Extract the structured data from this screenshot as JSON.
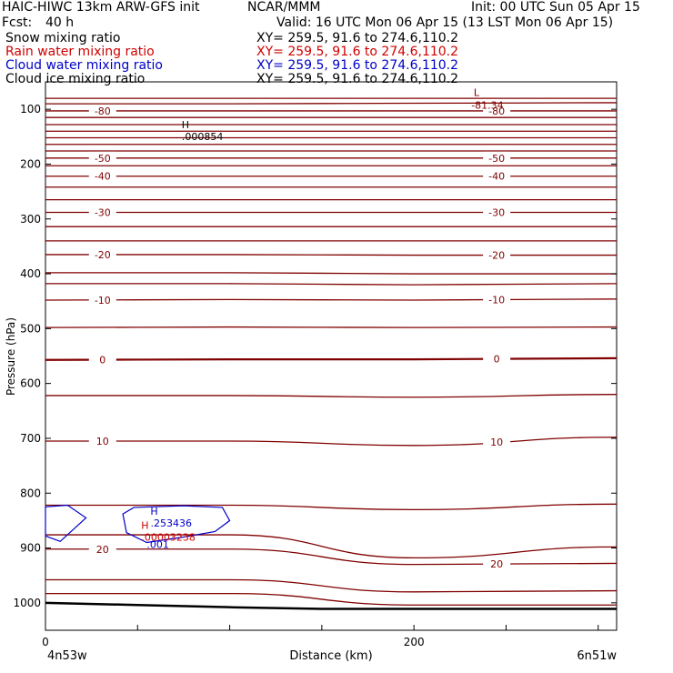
{
  "header": {
    "model": "HAIC-HIWC 13km ARW-GFS init",
    "center": "NCAR/MMM",
    "init": "Init: 00 UTC Sun 05 Apr 15",
    "fcst_label": "Fcst:",
    "fcst_value": "40 h",
    "valid": "Valid: 16 UTC Mon 06 Apr 15 (13 LST Mon 06 Apr 15)",
    "fields": [
      {
        "name": "Snow mixing ratio",
        "xy": "XY= 259.5, 91.6 to 274.6,110.2",
        "color": "#000000"
      },
      {
        "name": "Rain water mixing ratio",
        "xy": "XY= 259.5, 91.6 to 274.6,110.2",
        "color": "#d00000"
      },
      {
        "name": "Cloud water mixing ratio",
        "xy": "XY= 259.5, 91.6 to 274.6,110.2",
        "color": "#0000c8"
      },
      {
        "name": "Cloud ice mixing ratio",
        "xy": "XY= 259.5, 91.6 to 274.6,110.2",
        "color": "#000000"
      }
    ]
  },
  "chart_data": {
    "type": "line",
    "xlabel": "Distance (km)",
    "ylabel": "Pressure (hPa)",
    "xlim": [
      0,
      310
    ],
    "ylim": [
      1050,
      50
    ],
    "x_ticks": [
      0,
      200
    ],
    "y_ticks": [
      100,
      200,
      300,
      400,
      500,
      600,
      700,
      800,
      900,
      1000
    ],
    "endpoint_labels": {
      "left": "4n53w",
      "right": "6n51w"
    },
    "colors": {
      "temperature": "#800000",
      "terrain": "#000000",
      "cloud_water": "#0000c8",
      "rain": "#d00000"
    },
    "temperature_contours": [
      {
        "p": [
          80,
          80,
          80,
          80
        ],
        "label": null
      },
      {
        "p": [
          90,
          90,
          89,
          88
        ],
        "label": null
      },
      {
        "p": [
          103,
          103,
          103,
          103
        ],
        "label": "-80"
      },
      {
        "p": [
          115,
          115,
          115,
          115
        ],
        "label": null
      },
      {
        "p": [
          128,
          128,
          128,
          128
        ],
        "label": null
      },
      {
        "p": [
          140,
          140,
          140,
          140
        ],
        "label": null
      },
      {
        "p": [
          152,
          152,
          152,
          152
        ],
        "label": null
      },
      {
        "p": [
          164,
          164,
          164,
          164
        ],
        "label": null
      },
      {
        "p": [
          176,
          176,
          176,
          176
        ],
        "label": null
      },
      {
        "p": [
          189,
          189,
          189,
          189
        ],
        "label": "-50"
      },
      {
        "p": [
          203,
          203,
          203,
          203
        ],
        "label": null
      },
      {
        "p": [
          222,
          222,
          222,
          222
        ],
        "label": "-40"
      },
      {
        "p": [
          242,
          242,
          242,
          242
        ],
        "label": null
      },
      {
        "p": [
          265,
          265,
          265,
          265
        ],
        "label": null
      },
      {
        "p": [
          288,
          288,
          288,
          288
        ],
        "label": "-30"
      },
      {
        "p": [
          314,
          314,
          314,
          314
        ],
        "label": null
      },
      {
        "p": [
          340,
          340,
          340,
          340
        ],
        "label": null
      },
      {
        "p": [
          365,
          365,
          366,
          366
        ],
        "label": "-20"
      },
      {
        "p": [
          398,
          398,
          400,
          400
        ],
        "label": null
      },
      {
        "p": [
          418,
          418,
          420,
          418
        ],
        "label": null
      },
      {
        "p": [
          448,
          447,
          448,
          446
        ],
        "label": "-10"
      },
      {
        "p": [
          498,
          497,
          498,
          497
        ],
        "label": null
      },
      {
        "p": [
          557,
          556,
          556,
          554
        ],
        "label": "0"
      },
      {
        "p": [
          622,
          622,
          625,
          620
        ],
        "label": null
      },
      {
        "p": [
          705,
          705,
          713,
          698
        ],
        "label": "10"
      },
      {
        "p": [
          822,
          822,
          830,
          820
        ],
        "label": null
      },
      {
        "p": [
          876,
          876,
          918,
          898
        ],
        "label": null
      },
      {
        "p": [
          902,
          902,
          930,
          928
        ],
        "label": "20"
      },
      {
        "p": [
          958,
          958,
          980,
          978
        ],
        "label": null
      },
      {
        "p": [
          983,
          983,
          1004,
          1004
        ],
        "label": null
      }
    ],
    "contour_x": [
      0,
      100,
      200,
      310
    ],
    "terrain": {
      "x": [
        0,
        50,
        100,
        150,
        200,
        250,
        310
      ],
      "p": [
        1000,
        1004,
        1008,
        1011,
        1011,
        1011,
        1011
      ]
    },
    "extrema": [
      {
        "type": "L",
        "x": 230,
        "p": 86,
        "value": "-81.34"
      },
      {
        "type": "H",
        "x": 74,
        "p": 153,
        "value": ".000854"
      },
      {
        "type": "H",
        "x": 57,
        "p": 858,
        "value": ".253436"
      },
      {
        "type": "H",
        "x": 52,
        "p": 883,
        "value": ".00003238"
      }
    ],
    "cloud_water": [
      {
        "label": null,
        "outline": [
          [
            0,
            825
          ],
          [
            12,
            822
          ],
          [
            22,
            845
          ],
          [
            8,
            888
          ],
          [
            0,
            878
          ]
        ]
      },
      {
        "label": ".001",
        "outline": [
          [
            42,
            838
          ],
          [
            48,
            826
          ],
          [
            75,
            823
          ],
          [
            96,
            826
          ],
          [
            100,
            850
          ],
          [
            92,
            870
          ],
          [
            75,
            880
          ],
          [
            55,
            890
          ],
          [
            44,
            872
          ]
        ]
      }
    ]
  }
}
